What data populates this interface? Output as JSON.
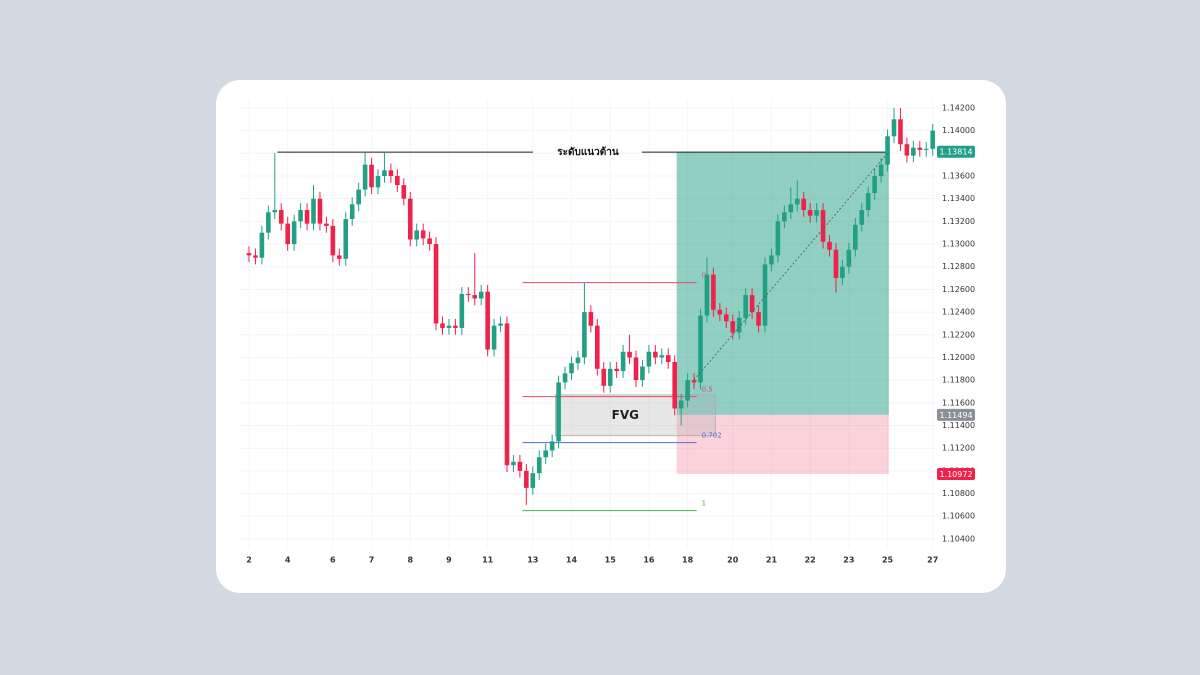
{
  "chart_data": {
    "type": "candlestick",
    "categories": [
      "2",
      null,
      null,
      null,
      null,
      null,
      "4",
      null,
      null,
      null,
      null,
      null,
      null,
      "6",
      null,
      null,
      null,
      null,
      null,
      "7",
      null,
      null,
      null,
      null,
      null,
      "8",
      null,
      null,
      null,
      null,
      null,
      "9",
      null,
      null,
      null,
      null,
      null,
      "11",
      null,
      null,
      null,
      null,
      null,
      null,
      "13",
      null,
      null,
      null,
      null,
      null,
      "14",
      null,
      null,
      null,
      null,
      null,
      "15",
      null,
      null,
      null,
      null,
      null,
      "16",
      null,
      null,
      null,
      null,
      null,
      "18",
      null,
      null,
      null,
      null,
      null,
      null,
      "20",
      null,
      null,
      null,
      null,
      null,
      "21",
      null,
      null,
      null,
      null,
      null,
      "22",
      null,
      null,
      null,
      null,
      null,
      "23",
      null,
      null,
      null,
      null,
      null,
      "25",
      null,
      null,
      null,
      null,
      null,
      null,
      "27"
    ],
    "open": [
      1.1292,
      1.129,
      1.1288,
      1.131,
      1.1328,
      1.133,
      1.1318,
      1.13,
      1.132,
      1.133,
      1.1318,
      1.134,
      1.1318,
      1.1316,
      1.129,
      1.1287,
      1.1322,
      1.1335,
      1.1348,
      1.137,
      1.135,
      1.136,
      1.1365,
      1.136,
      1.1352,
      1.134,
      1.1304,
      1.1312,
      1.1305,
      1.13,
      1.123,
      1.1226,
      1.1228,
      1.1226,
      1.1256,
      1.1255,
      1.1252,
      1.1258,
      1.1207,
      1.1228,
      1.123,
      1.1105,
      1.1108,
      1.11,
      1.1085,
      1.1098,
      1.1112,
      1.1118,
      1.1126,
      1.1178,
      1.1186,
      1.1195,
      1.12,
      1.124,
      1.1228,
      1.119,
      1.1175,
      1.119,
      1.1188,
      1.1205,
      1.12,
      1.118,
      1.1192,
      1.1205,
      1.12,
      1.1202,
      1.1196,
      1.1155,
      1.1162,
      1.118,
      1.1178,
      1.1237,
      1.1273,
      1.1242,
      1.1238,
      1.1232,
      1.1222,
      1.1235,
      1.1255,
      1.124,
      1.1228,
      1.1282,
      1.129,
      1.132,
      1.1328,
      1.1335,
      1.134,
      1.133,
      1.1325,
      1.133,
      1.1302,
      1.1295,
      1.127,
      1.128,
      1.1295,
      1.1317,
      1.133,
      1.1345,
      1.136,
      1.137,
      1.1395,
      1.141,
      1.1388,
      1.1378,
      1.1385,
      1.1383,
      1.1384
    ],
    "high": [
      1.1298,
      1.1296,
      1.1316,
      1.1334,
      1.138,
      1.1336,
      1.1324,
      1.1326,
      1.1336,
      1.1336,
      1.1352,
      1.1346,
      1.1324,
      1.1322,
      1.1296,
      1.1328,
      1.1341,
      1.1354,
      1.1381,
      1.1376,
      1.1366,
      1.1381,
      1.1371,
      1.1366,
      1.1358,
      1.1346,
      1.1318,
      1.1318,
      1.1311,
      1.1306,
      1.1236,
      1.1234,
      1.1234,
      1.1262,
      1.1262,
      1.1292,
      1.1264,
      1.1264,
      1.1234,
      1.1236,
      1.1236,
      1.1114,
      1.1114,
      1.1106,
      1.1104,
      1.1118,
      1.1124,
      1.1132,
      1.1184,
      1.1192,
      1.1201,
      1.1206,
      1.1266,
      1.1246,
      1.1234,
      1.1196,
      1.1196,
      1.1196,
      1.1211,
      1.122,
      1.1206,
      1.1198,
      1.1211,
      1.1211,
      1.1208,
      1.1208,
      1.1202,
      1.1168,
      1.1186,
      1.1186,
      1.1243,
      1.1288,
      1.1279,
      1.1248,
      1.1244,
      1.1238,
      1.1241,
      1.1261,
      1.1261,
      1.1246,
      1.1288,
      1.1296,
      1.1326,
      1.1334,
      1.135,
      1.1356,
      1.1346,
      1.1336,
      1.1336,
      1.1336,
      1.1308,
      1.1301,
      1.1286,
      1.1301,
      1.1323,
      1.1336,
      1.1351,
      1.1366,
      1.1376,
      1.1401,
      1.142,
      1.142,
      1.1394,
      1.1391,
      1.1391,
      1.139,
      1.1406
    ],
    "low": [
      1.1284,
      1.1282,
      1.1282,
      1.1304,
      1.1322,
      1.1312,
      1.1294,
      1.1294,
      1.1314,
      1.1312,
      1.1312,
      1.1312,
      1.131,
      1.1284,
      1.1281,
      1.1281,
      1.1316,
      1.1329,
      1.1342,
      1.1344,
      1.1344,
      1.1354,
      1.1354,
      1.1346,
      1.1334,
      1.1298,
      1.1298,
      1.1299,
      1.1294,
      1.1224,
      1.122,
      1.122,
      1.122,
      1.122,
      1.1249,
      1.1246,
      1.1246,
      1.1201,
      1.1201,
      1.1222,
      1.1099,
      1.1099,
      1.1094,
      1.107,
      1.1079,
      1.1092,
      1.1106,
      1.1112,
      1.112,
      1.1172,
      1.118,
      1.1189,
      1.1194,
      1.1222,
      1.1184,
      1.1169,
      1.1169,
      1.1182,
      1.1182,
      1.1194,
      1.1174,
      1.1174,
      1.1186,
      1.1194,
      1.1194,
      1.119,
      1.1149,
      1.114,
      1.1156,
      1.1172,
      1.1172,
      1.1231,
      1.1236,
      1.1232,
      1.1226,
      1.1216,
      1.1216,
      1.1229,
      1.1234,
      1.1222,
      1.1222,
      1.1276,
      1.1284,
      1.1314,
      1.1322,
      1.1329,
      1.1324,
      1.1319,
      1.1319,
      1.1296,
      1.1289,
      1.1257,
      1.1264,
      1.1274,
      1.1289,
      1.1311,
      1.1324,
      1.1339,
      1.1354,
      1.1364,
      1.1389,
      1.1382,
      1.1372,
      1.1372,
      1.1377,
      1.1377,
      1.1378
    ],
    "close": [
      1.129,
      1.1288,
      1.131,
      1.1328,
      1.133,
      1.1318,
      1.13,
      1.132,
      1.133,
      1.1318,
      1.134,
      1.1318,
      1.1316,
      1.129,
      1.1287,
      1.1322,
      1.1335,
      1.1348,
      1.137,
      1.135,
      1.136,
      1.1365,
      1.136,
      1.1352,
      1.134,
      1.1304,
      1.1312,
      1.1305,
      1.13,
      1.123,
      1.1226,
      1.1228,
      1.1226,
      1.1256,
      1.1255,
      1.1252,
      1.1258,
      1.1207,
      1.1228,
      1.123,
      1.1105,
      1.1108,
      1.11,
      1.1085,
      1.1098,
      1.1112,
      1.1118,
      1.1126,
      1.1178,
      1.1186,
      1.1195,
      1.12,
      1.124,
      1.1228,
      1.119,
      1.1175,
      1.119,
      1.1188,
      1.1205,
      1.12,
      1.118,
      1.1192,
      1.1205,
      1.12,
      1.1202,
      1.1196,
      1.1155,
      1.1162,
      1.118,
      1.1178,
      1.1237,
      1.1273,
      1.1242,
      1.1238,
      1.1232,
      1.1222,
      1.1235,
      1.1255,
      1.124,
      1.1228,
      1.1282,
      1.129,
      1.132,
      1.1328,
      1.1335,
      1.134,
      1.133,
      1.1325,
      1.133,
      1.1302,
      1.1295,
      1.127,
      1.128,
      1.1295,
      1.1317,
      1.133,
      1.1345,
      1.136,
      1.137,
      1.1395,
      1.141,
      1.1388,
      1.1378,
      1.1385,
      1.1383,
      1.1384,
      1.14
    ],
    "up_color": "#22a085",
    "down_color": "#f0214a",
    "ylim": [
      1.1032,
      1.1427
    ],
    "yticks": [
      {
        "value": 1.104,
        "label": "1.10400"
      },
      {
        "value": 1.106,
        "label": "1.10600"
      },
      {
        "value": 1.108,
        "label": "1.10800"
      },
      {
        "value": 1.11,
        "label": "1.11000"
      },
      {
        "value": 1.112,
        "label": "1.11200"
      },
      {
        "value": 1.114,
        "label": "1.11400"
      },
      {
        "value": 1.116,
        "label": "1.11600"
      },
      {
        "value": 1.118,
        "label": "1.11800"
      },
      {
        "value": 1.12,
        "label": "1.12000"
      },
      {
        "value": 1.122,
        "label": "1.12200"
      },
      {
        "value": 1.124,
        "label": "1.12400"
      },
      {
        "value": 1.126,
        "label": "1.12600"
      },
      {
        "value": 1.128,
        "label": "1.12800"
      },
      {
        "value": 1.13,
        "label": "1.13000"
      },
      {
        "value": 1.132,
        "label": "1.13200"
      },
      {
        "value": 1.134,
        "label": "1.13400"
      },
      {
        "value": 1.136,
        "label": "1.13600"
      },
      {
        "value": 1.138,
        "label": "1.13800"
      },
      {
        "value": 1.14,
        "label": "1.14000"
      },
      {
        "value": 1.142,
        "label": "1.14200"
      }
    ],
    "grid": true,
    "resistance": {
      "label": "ระดับแนวต้าน",
      "value": 1.1381
    },
    "position": {
      "target": 1.13814,
      "entry": 1.11494,
      "stop": 1.10972,
      "target_color": "#22a085",
      "entry_color": "#8a8f98",
      "stop_color": "#f0214a"
    },
    "fvg": {
      "label": "FVG",
      "top": 1.1167,
      "bottom": 1.1131
    },
    "fib": {
      "ratios": [
        0,
        0.5,
        0.702,
        1
      ],
      "high": 1.1266,
      "low": 1.1065,
      "colors": [
        "#e84a5f",
        "#e84a5f",
        "#4a6fe0",
        "#4caf50"
      ]
    }
  }
}
